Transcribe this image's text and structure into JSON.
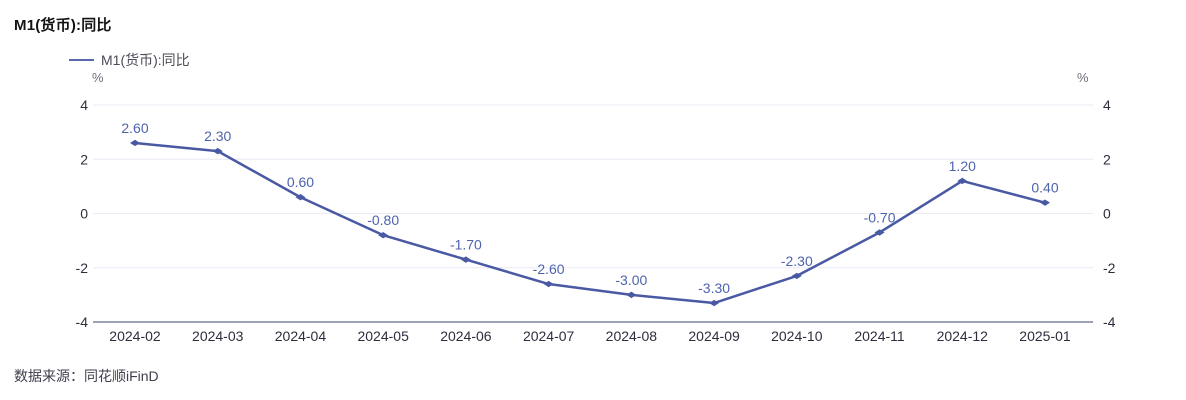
{
  "title": "M1(货币):同比",
  "legend": {
    "label": "M1(货币):同比"
  },
  "units": {
    "left": "%",
    "right": "%"
  },
  "source": "数据来源：同花顺iFinD",
  "colors": {
    "line": "#4a59a4",
    "marker": "#4a59a4",
    "data_label": "#4e63ae",
    "grid": "#e9eaf3",
    "axis_line": "#9ca2b8",
    "axis_label": "#2d2d3d",
    "title": "#141414",
    "legend_marker": "#5a68ae",
    "legend_text": "#4b4b57",
    "unit": "#6e6e7e",
    "source_text": "#3d3d4d",
    "background": "#ffffff"
  },
  "chart_data": {
    "type": "line",
    "title": "M1(货币):同比",
    "categories": [
      "2024-02",
      "2024-03",
      "2024-04",
      "2024-05",
      "2024-06",
      "2024-07",
      "2024-08",
      "2024-09",
      "2024-10",
      "2024-11",
      "2024-12",
      "2025-01"
    ],
    "series": [
      {
        "name": "M1(货币):同比",
        "values": [
          2.6,
          2.3,
          0.6,
          -0.8,
          -1.7,
          -2.6,
          -3.0,
          -3.3,
          -2.3,
          -0.7,
          1.2,
          0.4
        ],
        "labels": [
          "2.60",
          "2.30",
          "0.60",
          "-0.80",
          "-1.70",
          "-2.60",
          "-3.00",
          "-3.30",
          "-2.30",
          "-0.70",
          "1.20",
          "0.40"
        ]
      }
    ],
    "xlabel": "",
    "ylabel": "%",
    "ylim": [
      -4,
      4
    ],
    "yticks": [
      4,
      2,
      0,
      -2,
      -4
    ],
    "y_axis_sides": [
      "left",
      "right"
    ],
    "grid": true,
    "legend_position": "top-left",
    "data_labels_visible": true
  }
}
